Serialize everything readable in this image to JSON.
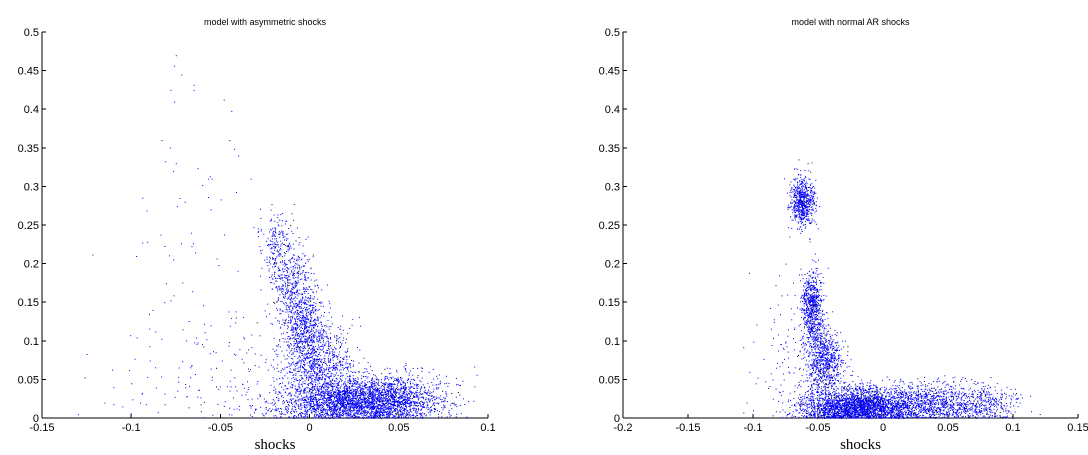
{
  "chart_data": [
    {
      "type": "scatter",
      "title": "model with asymmetric shocks",
      "xlabel": "shocks",
      "ylabel": "",
      "xlim": [
        -0.15,
        0.1
      ],
      "ylim": [
        0,
        0.5
      ],
      "xticks": [
        -0.15,
        -0.1,
        -0.05,
        0,
        0.05,
        0.1
      ],
      "xtick_labels": [
        "-0.15",
        "-0.1",
        "-0.05",
        "0",
        "0.05",
        "0.1"
      ],
      "yticks": [
        0,
        0.05,
        0.1,
        0.15,
        0.2,
        0.25,
        0.3,
        0.35,
        0.4,
        0.45,
        0.5
      ],
      "ytick_labels": [
        "0",
        "0.05",
        "0.1",
        "0.15",
        "0.2",
        "0.25",
        "0.3",
        "0.35",
        "0.4",
        "0.45",
        "0.5"
      ],
      "grid": false,
      "point_color": "#0000ff",
      "dark_point_color": "#000000",
      "point_clusters": [
        {
          "cx": 0.025,
          "cy": 0.02,
          "sx": 0.022,
          "sy": 0.015,
          "n": 2600
        },
        {
          "cx": 0.045,
          "cy": 0.03,
          "sx": 0.015,
          "sy": 0.015,
          "n": 700
        },
        {
          "cx": 0.005,
          "cy": 0.07,
          "sx": 0.01,
          "sy": 0.025,
          "n": 900
        },
        {
          "cx": -0.003,
          "cy": 0.12,
          "sx": 0.006,
          "sy": 0.025,
          "n": 600
        },
        {
          "cx": -0.01,
          "cy": 0.17,
          "sx": 0.006,
          "sy": 0.025,
          "n": 380
        },
        {
          "cx": -0.018,
          "cy": 0.22,
          "sx": 0.005,
          "sy": 0.022,
          "n": 230
        },
        {
          "cx": -0.045,
          "cy": 0.06,
          "sx": 0.025,
          "sy": 0.05,
          "n": 140
        },
        {
          "cx": -0.08,
          "cy": 0.12,
          "sx": 0.02,
          "sy": 0.11,
          "n": 40
        },
        {
          "cx": -0.065,
          "cy": 0.3,
          "sx": 0.015,
          "sy": 0.06,
          "n": 25
        }
      ],
      "points": [
        [
          -0.075,
          0.47
        ],
        [
          -0.072,
          0.445
        ],
        [
          -0.078,
          0.425
        ],
        [
          -0.065,
          0.425
        ],
        [
          -0.076,
          0.41
        ],
        [
          -0.045,
          0.36
        ],
        [
          -0.075,
          0.33
        ],
        [
          -0.04,
          0.34
        ],
        [
          -0.055,
          0.31
        ],
        [
          -0.033,
          0.31
        ],
        [
          -0.057,
          0.31
        ],
        [
          -0.083,
          0.36
        ],
        [
          -0.07,
          0.28
        ],
        [
          -0.073,
          0.285
        ],
        [
          -0.115,
          0.02
        ],
        [
          -0.11,
          0.04
        ],
        [
          -0.1,
          0.045
        ],
        [
          -0.09,
          0.135
        ],
        [
          -0.088,
          0.14
        ],
        [
          0.073,
          0.048
        ],
        [
          0.082,
          0.052
        ],
        [
          -0.095,
          0.02
        ],
        [
          -0.105,
          0.015
        ]
      ]
    },
    {
      "type": "scatter",
      "title": "model with normal AR shocks",
      "xlabel": "shocks",
      "ylabel": "",
      "xlim": [
        -0.2,
        0.15
      ],
      "ylim": [
        0,
        0.5
      ],
      "xticks": [
        -0.2,
        -0.15,
        -0.1,
        -0.05,
        0,
        0.05,
        0.1,
        0.15
      ],
      "xtick_labels": [
        "-0.2",
        "-0.15",
        "-0.1",
        "-0.05",
        "0",
        "0.05",
        "0.1",
        "0.15"
      ],
      "yticks": [
        0,
        0.05,
        0.1,
        0.15,
        0.2,
        0.25,
        0.3,
        0.35,
        0.4,
        0.45,
        0.5
      ],
      "ytick_labels": [
        "0",
        "0.05",
        "0.1",
        "0.15",
        "0.2",
        "0.25",
        "0.3",
        "0.35",
        "0.4",
        "0.45",
        "0.5"
      ],
      "grid": false,
      "point_color": "#0000ff",
      "dark_point_color": "#000000",
      "point_clusters": [
        {
          "cx": -0.025,
          "cy": 0.015,
          "sx": 0.02,
          "sy": 0.012,
          "n": 2200
        },
        {
          "cx": 0.025,
          "cy": 0.018,
          "sx": 0.03,
          "sy": 0.014,
          "n": 1500
        },
        {
          "cx": 0.075,
          "cy": 0.02,
          "sx": 0.015,
          "sy": 0.012,
          "n": 300
        },
        {
          "cx": -0.045,
          "cy": 0.07,
          "sx": 0.007,
          "sy": 0.02,
          "n": 700
        },
        {
          "cx": -0.055,
          "cy": 0.15,
          "sx": 0.004,
          "sy": 0.02,
          "n": 600
        },
        {
          "cx": -0.051,
          "cy": 0.105,
          "sx": 0.005,
          "sy": 0.015,
          "n": 200
        },
        {
          "cx": -0.062,
          "cy": 0.28,
          "sx": 0.0045,
          "sy": 0.015,
          "n": 650
        },
        {
          "cx": -0.07,
          "cy": 0.08,
          "sx": 0.015,
          "sy": 0.05,
          "n": 110
        }
      ],
      "points": [
        [
          -0.1,
          0.01
        ],
        [
          -0.105,
          0.02
        ],
        [
          -0.085,
          0.05
        ],
        [
          -0.08,
          0.185
        ],
        [
          -0.075,
          0.2
        ],
        [
          -0.072,
          0.235
        ],
        [
          -0.058,
          0.33
        ],
        [
          -0.065,
          0.335
        ],
        [
          0.105,
          0.02
        ],
        [
          0.1,
          0.032
        ],
        [
          0.095,
          0.04
        ],
        [
          -0.098,
          0.045
        ]
      ]
    }
  ]
}
